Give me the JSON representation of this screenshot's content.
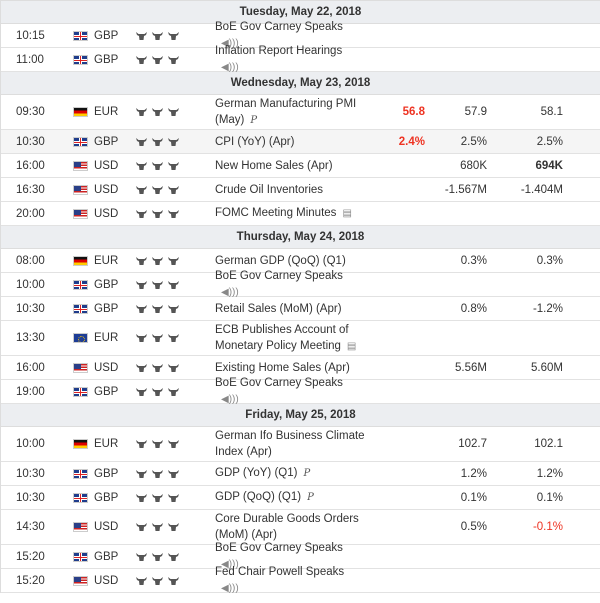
{
  "days": [
    {
      "title": "Tuesday, May 22, 2018",
      "rows": [
        {
          "time": "10:15",
          "flag": "gb",
          "currency": "GBP",
          "event": "BoE Gov Carney Speaks",
          "icon": "speaker-icon",
          "actual": "",
          "forecast": "",
          "previous": ""
        },
        {
          "time": "11:00",
          "flag": "gb",
          "currency": "GBP",
          "event": "Inflation Report Hearings",
          "icon": "speaker-icon",
          "actual": "",
          "forecast": "",
          "previous": ""
        }
      ]
    },
    {
      "title": "Wednesday, May 23, 2018",
      "rows": [
        {
          "time": "09:30",
          "flag": "de",
          "currency": "EUR",
          "event": "German Manufacturing PMI (May)",
          "icon": "preliminary-icon",
          "actual": "56.8",
          "actual_color": "red",
          "forecast": "57.9",
          "previous": "58.1",
          "tall": true
        },
        {
          "time": "10:30",
          "flag": "gb",
          "currency": "GBP",
          "event": "CPI (YoY) (Apr)",
          "icon": "",
          "actual": "2.4%",
          "actual_color": "red",
          "forecast": "2.5%",
          "previous": "2.5%",
          "shade": true
        },
        {
          "time": "16:00",
          "flag": "us",
          "currency": "USD",
          "event": "New Home Sales (Apr)",
          "icon": "",
          "actual": "",
          "forecast": "680K",
          "previous": "694K",
          "previous_bold": true
        },
        {
          "time": "16:30",
          "flag": "us",
          "currency": "USD",
          "event": "Crude Oil Inventories",
          "icon": "",
          "actual": "",
          "forecast": "-1.567M",
          "previous": "-1.404M"
        },
        {
          "time": "20:00",
          "flag": "us",
          "currency": "USD",
          "event": "FOMC Meeting Minutes",
          "icon": "document-icon",
          "actual": "",
          "forecast": "",
          "previous": ""
        }
      ]
    },
    {
      "title": "Thursday, May 24, 2018",
      "rows": [
        {
          "time": "08:00",
          "flag": "de",
          "currency": "EUR",
          "event": "German GDP (QoQ) (Q1)",
          "icon": "",
          "actual": "",
          "forecast": "0.3%",
          "previous": "0.3%"
        },
        {
          "time": "10:00",
          "flag": "gb",
          "currency": "GBP",
          "event": "BoE Gov Carney Speaks",
          "icon": "speaker-icon",
          "actual": "",
          "forecast": "",
          "previous": ""
        },
        {
          "time": "10:30",
          "flag": "gb",
          "currency": "GBP",
          "event": "Retail Sales (MoM) (Apr)",
          "icon": "",
          "actual": "",
          "forecast": "0.8%",
          "previous": "-1.2%"
        },
        {
          "time": "13:30",
          "flag": "eu",
          "currency": "EUR",
          "event": "ECB Publishes Account of Monetary Policy Meeting",
          "icon": "document-icon",
          "actual": "",
          "forecast": "",
          "previous": "",
          "tall": true
        },
        {
          "time": "16:00",
          "flag": "us",
          "currency": "USD",
          "event": "Existing Home Sales (Apr)",
          "icon": "",
          "actual": "",
          "forecast": "5.56M",
          "previous": "5.60M"
        },
        {
          "time": "19:00",
          "flag": "gb",
          "currency": "GBP",
          "event": "BoE Gov Carney Speaks",
          "icon": "speaker-icon",
          "actual": "",
          "forecast": "",
          "previous": ""
        }
      ]
    },
    {
      "title": "Friday, May 25, 2018",
      "rows": [
        {
          "time": "10:00",
          "flag": "de",
          "currency": "EUR",
          "event": "German Ifo Business Climate Index (Apr)",
          "icon": "",
          "actual": "",
          "forecast": "102.7",
          "previous": "102.1",
          "tall": true
        },
        {
          "time": "10:30",
          "flag": "gb",
          "currency": "GBP",
          "event": "GDP (YoY) (Q1)",
          "icon": "preliminary-icon",
          "actual": "",
          "forecast": "1.2%",
          "previous": "1.2%"
        },
        {
          "time": "10:30",
          "flag": "gb",
          "currency": "GBP",
          "event": "GDP (QoQ) (Q1)",
          "icon": "preliminary-icon",
          "actual": "",
          "forecast": "0.1%",
          "previous": "0.1%"
        },
        {
          "time": "14:30",
          "flag": "us",
          "currency": "USD",
          "event": "Core Durable Goods Orders (MoM) (Apr)",
          "icon": "",
          "actual": "",
          "forecast": "0.5%",
          "previous": "-0.1%",
          "previous_color": "red",
          "tall": true
        },
        {
          "time": "15:20",
          "flag": "gb",
          "currency": "GBP",
          "event": "BoE Gov Carney Speaks",
          "icon": "speaker-icon",
          "actual": "",
          "forecast": "",
          "previous": ""
        },
        {
          "time": "15:20",
          "flag": "us",
          "currency": "USD",
          "event": "Fed Chair Powell Speaks",
          "icon": "speaker-icon",
          "actual": "",
          "forecast": "",
          "previous": ""
        }
      ]
    }
  ],
  "importance_count": 3,
  "colors": {
    "negative": "#e32222",
    "header_bg": "#eceef1"
  }
}
